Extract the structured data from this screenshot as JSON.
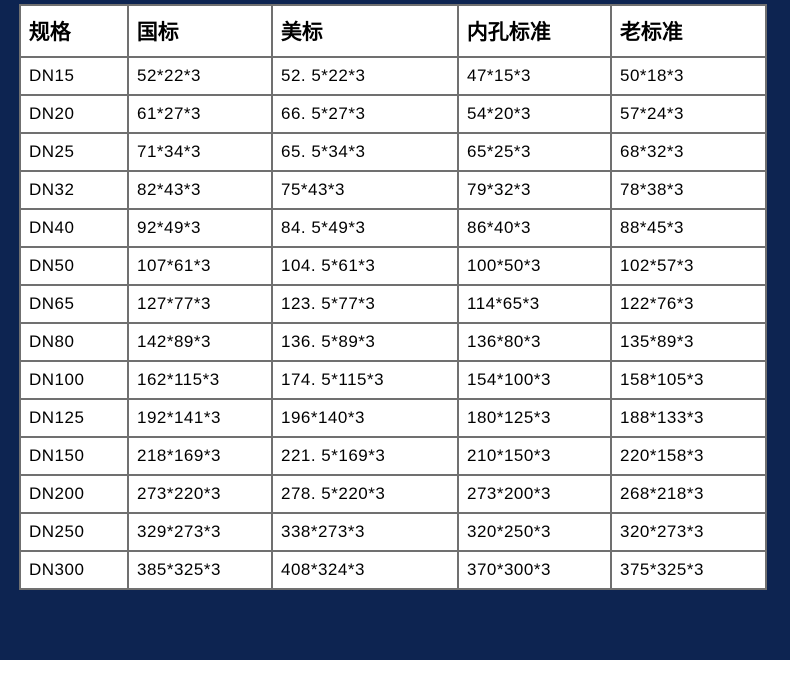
{
  "chart_data": {
    "type": "table",
    "columns": [
      "规格",
      "国标",
      "美标",
      "内孔标准",
      "老标准"
    ],
    "rows": [
      [
        "DN15",
        "52*22*3",
        "52. 5*22*3",
        "47*15*3",
        "50*18*3"
      ],
      [
        "DN20",
        "61*27*3",
        "66. 5*27*3",
        "54*20*3",
        "57*24*3"
      ],
      [
        "DN25",
        "71*34*3",
        "65. 5*34*3",
        "65*25*3",
        "68*32*3"
      ],
      [
        "DN32",
        "82*43*3",
        "75*43*3",
        "79*32*3",
        "78*38*3"
      ],
      [
        "DN40",
        "92*49*3",
        "84. 5*49*3",
        "86*40*3",
        "88*45*3"
      ],
      [
        "DN50",
        "107*61*3",
        "104. 5*61*3",
        "100*50*3",
        "102*57*3"
      ],
      [
        "DN65",
        "127*77*3",
        "123. 5*77*3",
        "114*65*3",
        "122*76*3"
      ],
      [
        "DN80",
        "142*89*3",
        "136. 5*89*3",
        "136*80*3",
        "135*89*3"
      ],
      [
        "DN100",
        "162*115*3",
        "174. 5*115*3",
        "154*100*3",
        "158*105*3"
      ],
      [
        "DN125",
        "192*141*3",
        "196*140*3",
        "180*125*3",
        "188*133*3"
      ],
      [
        "DN150",
        "218*169*3",
        "221. 5*169*3",
        "210*150*3",
        "220*158*3"
      ],
      [
        "DN200",
        "273*220*3",
        "278. 5*220*3",
        "273*200*3",
        "268*218*3"
      ],
      [
        "DN250",
        "329*273*3",
        "338*273*3",
        "320*250*3",
        "320*273*3"
      ],
      [
        "DN300",
        "385*325*3",
        "408*324*3",
        "370*300*3",
        "375*325*3"
      ]
    ]
  },
  "colors": {
    "frame_navy": "#0d2451",
    "table_border": "#707070",
    "cell_background": "#ffffff",
    "text": "#000000"
  }
}
